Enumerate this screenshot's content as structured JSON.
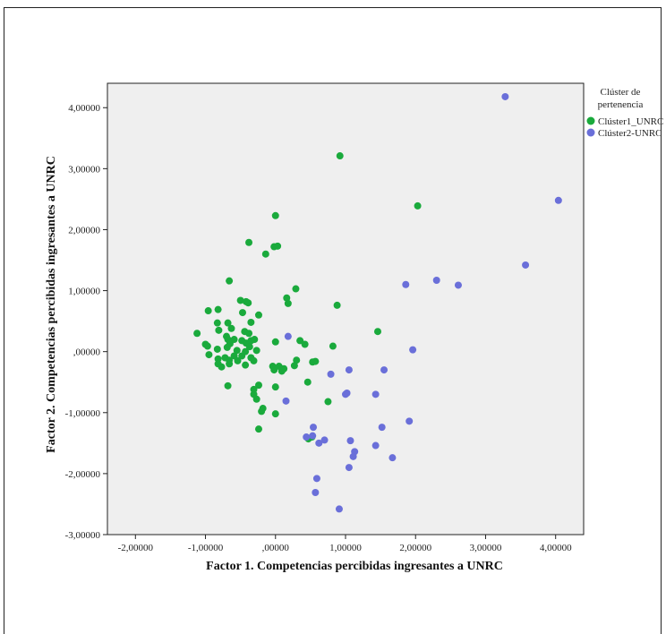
{
  "chart_data": {
    "type": "scatter",
    "xlabel": "Factor 1. Competencias percibidas ingresantes a UNRC",
    "ylabel": "Factor 2. Competencias percibidas ingresantes a UNRC",
    "xlim": [
      -2.4,
      4.4
    ],
    "ylim": [
      -3.0,
      4.4
    ],
    "x_ticks": [
      -2,
      -1,
      0,
      1,
      2,
      3,
      4
    ],
    "x_tick_labels": [
      "-2,00000",
      "-1,00000",
      ",00000",
      "1,00000",
      "2,00000",
      "3,00000",
      "4,00000"
    ],
    "y_ticks": [
      -3,
      -2,
      -1,
      0,
      1,
      2,
      3,
      4
    ],
    "y_tick_labels": [
      "-3,00000",
      "-2,00000",
      "-1,00000",
      ",00000",
      "1,00000",
      "2,00000",
      "3,00000",
      "4,00000"
    ],
    "grid": false,
    "plot_background": "#efefef",
    "legend": {
      "title": [
        "Clúster de",
        "pertenencia"
      ],
      "placement": "right-top outside",
      "entries": [
        "Clúster1_UNRC",
        "Clúster2-UNRC"
      ]
    },
    "series": [
      {
        "name": "Clúster1_UNRC",
        "color": "#1aaa3c",
        "points": [
          [
            0.92,
            3.21
          ],
          [
            2.03,
            2.39
          ],
          [
            0.0,
            2.23
          ],
          [
            -0.38,
            1.79
          ],
          [
            -0.02,
            1.72
          ],
          [
            0.03,
            1.73
          ],
          [
            -0.14,
            1.6
          ],
          [
            -0.66,
            1.16
          ],
          [
            0.29,
            1.03
          ],
          [
            0.16,
            0.88
          ],
          [
            0.18,
            0.79
          ],
          [
            -0.5,
            0.84
          ],
          [
            -0.42,
            0.82
          ],
          [
            -0.39,
            0.8
          ],
          [
            0.88,
            0.76
          ],
          [
            -0.96,
            0.67
          ],
          [
            -0.82,
            0.69
          ],
          [
            -0.47,
            0.64
          ],
          [
            -0.24,
            0.6
          ],
          [
            -0.83,
            0.47
          ],
          [
            -0.68,
            0.47
          ],
          [
            -0.63,
            0.38
          ],
          [
            -0.35,
            0.48
          ],
          [
            -1.12,
            0.3
          ],
          [
            -0.81,
            0.35
          ],
          [
            -0.44,
            0.33
          ],
          [
            -0.38,
            0.3
          ],
          [
            -0.7,
            0.25
          ],
          [
            -0.68,
            0.2
          ],
          [
            -0.59,
            0.2
          ],
          [
            -0.48,
            0.18
          ],
          [
            -0.42,
            0.14
          ],
          [
            -0.35,
            0.18
          ],
          [
            -0.3,
            0.2
          ],
          [
            0.0,
            0.16
          ],
          [
            0.35,
            0.18
          ],
          [
            0.42,
            0.12
          ],
          [
            0.82,
            0.09
          ],
          [
            1.46,
            0.33
          ],
          [
            -0.97,
            0.09
          ],
          [
            -1.0,
            0.12
          ],
          [
            -0.83,
            0.04
          ],
          [
            -0.69,
            0.07
          ],
          [
            -0.65,
            0.13
          ],
          [
            -0.55,
            0.02
          ],
          [
            -0.43,
            0.0
          ],
          [
            -0.37,
            0.08
          ],
          [
            -0.27,
            0.02
          ],
          [
            -0.95,
            -0.05
          ],
          [
            -0.82,
            -0.12
          ],
          [
            -0.72,
            -0.1
          ],
          [
            -0.66,
            -0.14
          ],
          [
            -0.59,
            -0.07
          ],
          [
            -0.48,
            -0.07
          ],
          [
            -0.35,
            -0.1
          ],
          [
            -0.82,
            -0.2
          ],
          [
            -0.77,
            -0.25
          ],
          [
            -0.66,
            -0.2
          ],
          [
            -0.54,
            -0.15
          ],
          [
            -0.43,
            -0.22
          ],
          [
            -0.31,
            -0.15
          ],
          [
            -0.04,
            -0.24
          ],
          [
            0.05,
            -0.24
          ],
          [
            0.12,
            -0.28
          ],
          [
            0.27,
            -0.23
          ],
          [
            0.3,
            -0.14
          ],
          [
            0.53,
            -0.17
          ],
          [
            0.57,
            -0.16
          ],
          [
            -0.02,
            -0.3
          ],
          [
            0.09,
            -0.32
          ],
          [
            -0.68,
            -0.56
          ],
          [
            -0.31,
            -0.62
          ],
          [
            -0.31,
            -0.7
          ],
          [
            -0.27,
            -0.78
          ],
          [
            -0.24,
            -0.55
          ],
          [
            0.0,
            -0.58
          ],
          [
            0.46,
            -0.5
          ],
          [
            0.75,
            -0.82
          ],
          [
            -0.2,
            -0.98
          ],
          [
            -0.18,
            -0.93
          ],
          [
            0.0,
            -1.02
          ],
          [
            -0.24,
            -1.27
          ],
          [
            0.47,
            -1.43
          ],
          [
            0.52,
            -1.4
          ]
        ]
      },
      {
        "name": "Clúster2-UNRC",
        "color": "#6a6fd9",
        "points": [
          [
            3.28,
            4.18
          ],
          [
            4.04,
            2.48
          ],
          [
            3.57,
            1.42
          ],
          [
            2.3,
            1.17
          ],
          [
            2.61,
            1.09
          ],
          [
            1.86,
            1.1
          ],
          [
            1.96,
            0.03
          ],
          [
            0.18,
            0.25
          ],
          [
            1.55,
            -0.3
          ],
          [
            1.05,
            -0.3
          ],
          [
            0.79,
            -0.37
          ],
          [
            1.0,
            -0.7
          ],
          [
            1.02,
            -0.68
          ],
          [
            1.43,
            -0.7
          ],
          [
            0.15,
            -0.81
          ],
          [
            1.91,
            -1.14
          ],
          [
            1.52,
            -1.24
          ],
          [
            0.54,
            -1.24
          ],
          [
            0.44,
            -1.4
          ],
          [
            0.53,
            -1.38
          ],
          [
            0.7,
            -1.45
          ],
          [
            0.62,
            -1.5
          ],
          [
            1.07,
            -1.46
          ],
          [
            1.43,
            -1.54
          ],
          [
            1.13,
            -1.64
          ],
          [
            1.11,
            -1.72
          ],
          [
            1.67,
            -1.74
          ],
          [
            1.05,
            -1.9
          ],
          [
            0.59,
            -2.08
          ],
          [
            0.57,
            -2.31
          ],
          [
            0.91,
            -2.58
          ]
        ]
      }
    ]
  }
}
